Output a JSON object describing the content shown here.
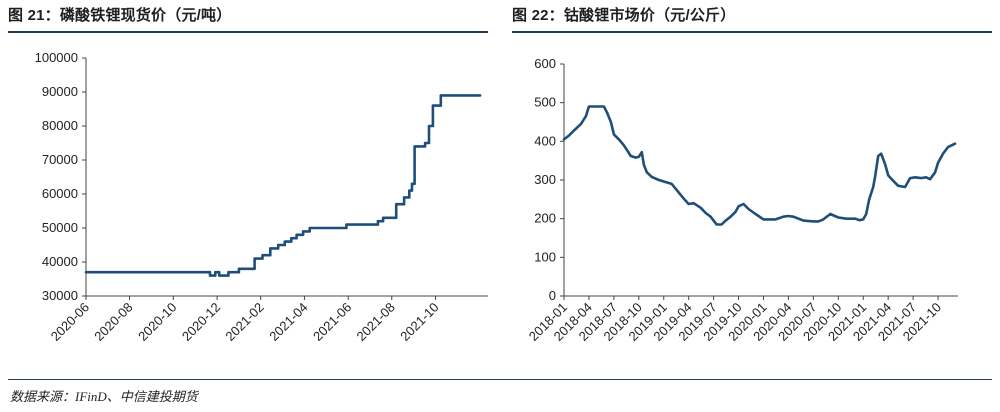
{
  "chart_data": [
    {
      "type": "line",
      "title": "图 21：磷酸铁锂现货价（元/吨）",
      "xlabel": "",
      "ylabel": "",
      "ylim": [
        30000,
        100000
      ],
      "yticks": [
        "100000",
        "90000",
        "80000",
        "70000",
        "60000",
        "50000",
        "40000",
        "30000"
      ],
      "ytick_values": [
        100000,
        90000,
        80000,
        70000,
        60000,
        50000,
        40000,
        30000
      ],
      "xticks": [
        "2020-06",
        "2020-08",
        "2020-10",
        "2020-12",
        "2021-02",
        "2021-04",
        "2021-06",
        "2021-08",
        "2021-10"
      ],
      "xtick_values": [
        2020.417,
        2020.583,
        2020.75,
        2020.917,
        2021.083,
        2021.25,
        2021.417,
        2021.583,
        2021.75
      ],
      "xlim": [
        2020.417,
        2021.95
      ],
      "line_color": "#1f4e79",
      "series": [
        {
          "x": [
            2020.417,
            2020.89,
            2020.89,
            2020.91,
            2020.91,
            2020.925,
            2020.925,
            2020.96,
            2020.96,
            2021.0,
            2021.0,
            2021.06,
            2021.06,
            2021.09,
            2021.09,
            2021.12,
            2021.12,
            2021.15,
            2021.15,
            2021.175,
            2021.175,
            2021.2,
            2021.2,
            2021.22,
            2021.22,
            2021.245,
            2021.245,
            2021.27,
            2021.27,
            2021.41,
            2021.41,
            2021.53,
            2021.53,
            2021.55,
            2021.55,
            2021.6,
            2021.6,
            2021.63,
            2021.63,
            2021.65,
            2021.65,
            2021.66,
            2021.66,
            2021.67,
            2021.67,
            2021.71,
            2021.71,
            2021.725,
            2021.725,
            2021.74,
            2021.74,
            2021.77,
            2021.77,
            2021.84,
            2021.84,
            2021.92
          ],
          "y": [
            37000,
            37000,
            36000,
            36000,
            37000,
            37000,
            36000,
            36000,
            37000,
            37000,
            38000,
            38000,
            41000,
            41000,
            42000,
            42000,
            44000,
            44000,
            45000,
            45000,
            46000,
            46000,
            47000,
            47000,
            48000,
            48000,
            49000,
            49000,
            50000,
            50000,
            51000,
            51000,
            52000,
            52000,
            53000,
            53000,
            57000,
            57000,
            59000,
            59000,
            61000,
            61000,
            63000,
            63000,
            74000,
            74000,
            75000,
            75000,
            80000,
            80000,
            86000,
            86000,
            89000,
            89000,
            89000,
            89000
          ]
        }
      ]
    },
    {
      "type": "line",
      "title": "图 22：钴酸锂市场价（元/公斤）",
      "xlabel": "",
      "ylabel": "",
      "ylim": [
        0,
        600
      ],
      "yticks": [
        "600",
        "500",
        "400",
        "300",
        "200",
        "100",
        "0"
      ],
      "ytick_values": [
        600,
        500,
        400,
        300,
        200,
        100,
        0
      ],
      "xticks": [
        "2018-01",
        "2018-04",
        "2018-07",
        "2018-10",
        "2019-01",
        "2019-04",
        "2019-07",
        "2019-10",
        "2020-01",
        "2020-04",
        "2020-07",
        "2020-10",
        "2021-01",
        "2021-04",
        "2021-07",
        "2021-10"
      ],
      "xtick_values": [
        2018.0,
        2018.25,
        2018.5,
        2018.75,
        2019.0,
        2019.25,
        2019.5,
        2019.75,
        2020.0,
        2020.25,
        2020.5,
        2020.75,
        2021.0,
        2021.25,
        2021.5,
        2021.75
      ],
      "xlim": [
        2018.0,
        2021.95
      ],
      "line_color": "#1f4e79",
      "series": [
        {
          "x": [
            2018.0,
            2018.05,
            2018.1,
            2018.17,
            2018.22,
            2018.25,
            2018.3,
            2018.4,
            2018.43,
            2018.47,
            2018.5,
            2018.55,
            2018.6,
            2018.63,
            2018.67,
            2018.72,
            2018.75,
            2018.78,
            2018.8,
            2018.83,
            2018.88,
            2018.95,
            2019.0,
            2019.08,
            2019.15,
            2019.2,
            2019.25,
            2019.3,
            2019.37,
            2019.42,
            2019.47,
            2019.53,
            2019.58,
            2019.62,
            2019.67,
            2019.72,
            2019.75,
            2019.8,
            2019.85,
            2019.92,
            2020.0,
            2020.08,
            2020.12,
            2020.2,
            2020.25,
            2020.3,
            2020.4,
            2020.5,
            2020.55,
            2020.6,
            2020.67,
            2020.75,
            2020.83,
            2020.92,
            2020.96,
            2021.0,
            2021.03,
            2021.06,
            2021.1,
            2021.12,
            2021.15,
            2021.18,
            2021.22,
            2021.25,
            2021.3,
            2021.35,
            2021.42,
            2021.47,
            2021.52,
            2021.58,
            2021.63,
            2021.67,
            2021.72,
            2021.75,
            2021.8,
            2021.85,
            2021.92
          ],
          "y": [
            405,
            415,
            428,
            445,
            465,
            490,
            490,
            490,
            475,
            450,
            418,
            405,
            390,
            378,
            362,
            358,
            360,
            372,
            340,
            320,
            308,
            300,
            296,
            290,
            268,
            252,
            238,
            240,
            228,
            215,
            205,
            185,
            185,
            195,
            205,
            218,
            232,
            238,
            225,
            212,
            198,
            198,
            198,
            205,
            207,
            205,
            195,
            193,
            193,
            198,
            212,
            203,
            200,
            200,
            196,
            198,
            212,
            250,
            282,
            310,
            362,
            368,
            340,
            312,
            298,
            285,
            282,
            305,
            307,
            305,
            307,
            302,
            320,
            345,
            368,
            385,
            394
          ]
        }
      ]
    }
  ],
  "left": {
    "title": "图 21：磷酸铁锂现货价（元/吨）"
  },
  "right": {
    "title": "图 22：钴酸锂市场价（元/公斤）"
  },
  "footer": {
    "source": "数据来源：IFinD、中信建投期货"
  }
}
